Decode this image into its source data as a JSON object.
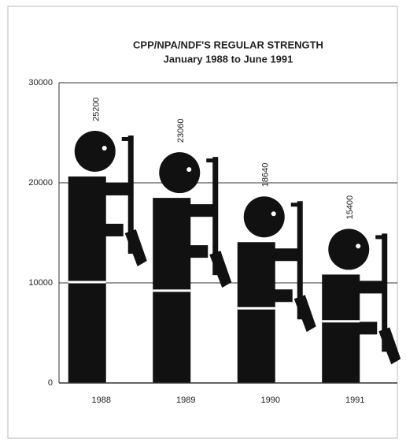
{
  "chart_data": {
    "type": "pictogram",
    "title": "CPP/NPA/NDF'S REGULAR STRENGTH",
    "subtitle": "January 1988 to June 1991",
    "categories": [
      "1988",
      "1989",
      "1990",
      "1991"
    ],
    "values": [
      25200,
      23060,
      18640,
      15400
    ],
    "color": "#111111",
    "ylim": [
      0,
      30000
    ],
    "yticks": [
      0,
      10000,
      20000,
      30000
    ],
    "grid": true
  }
}
